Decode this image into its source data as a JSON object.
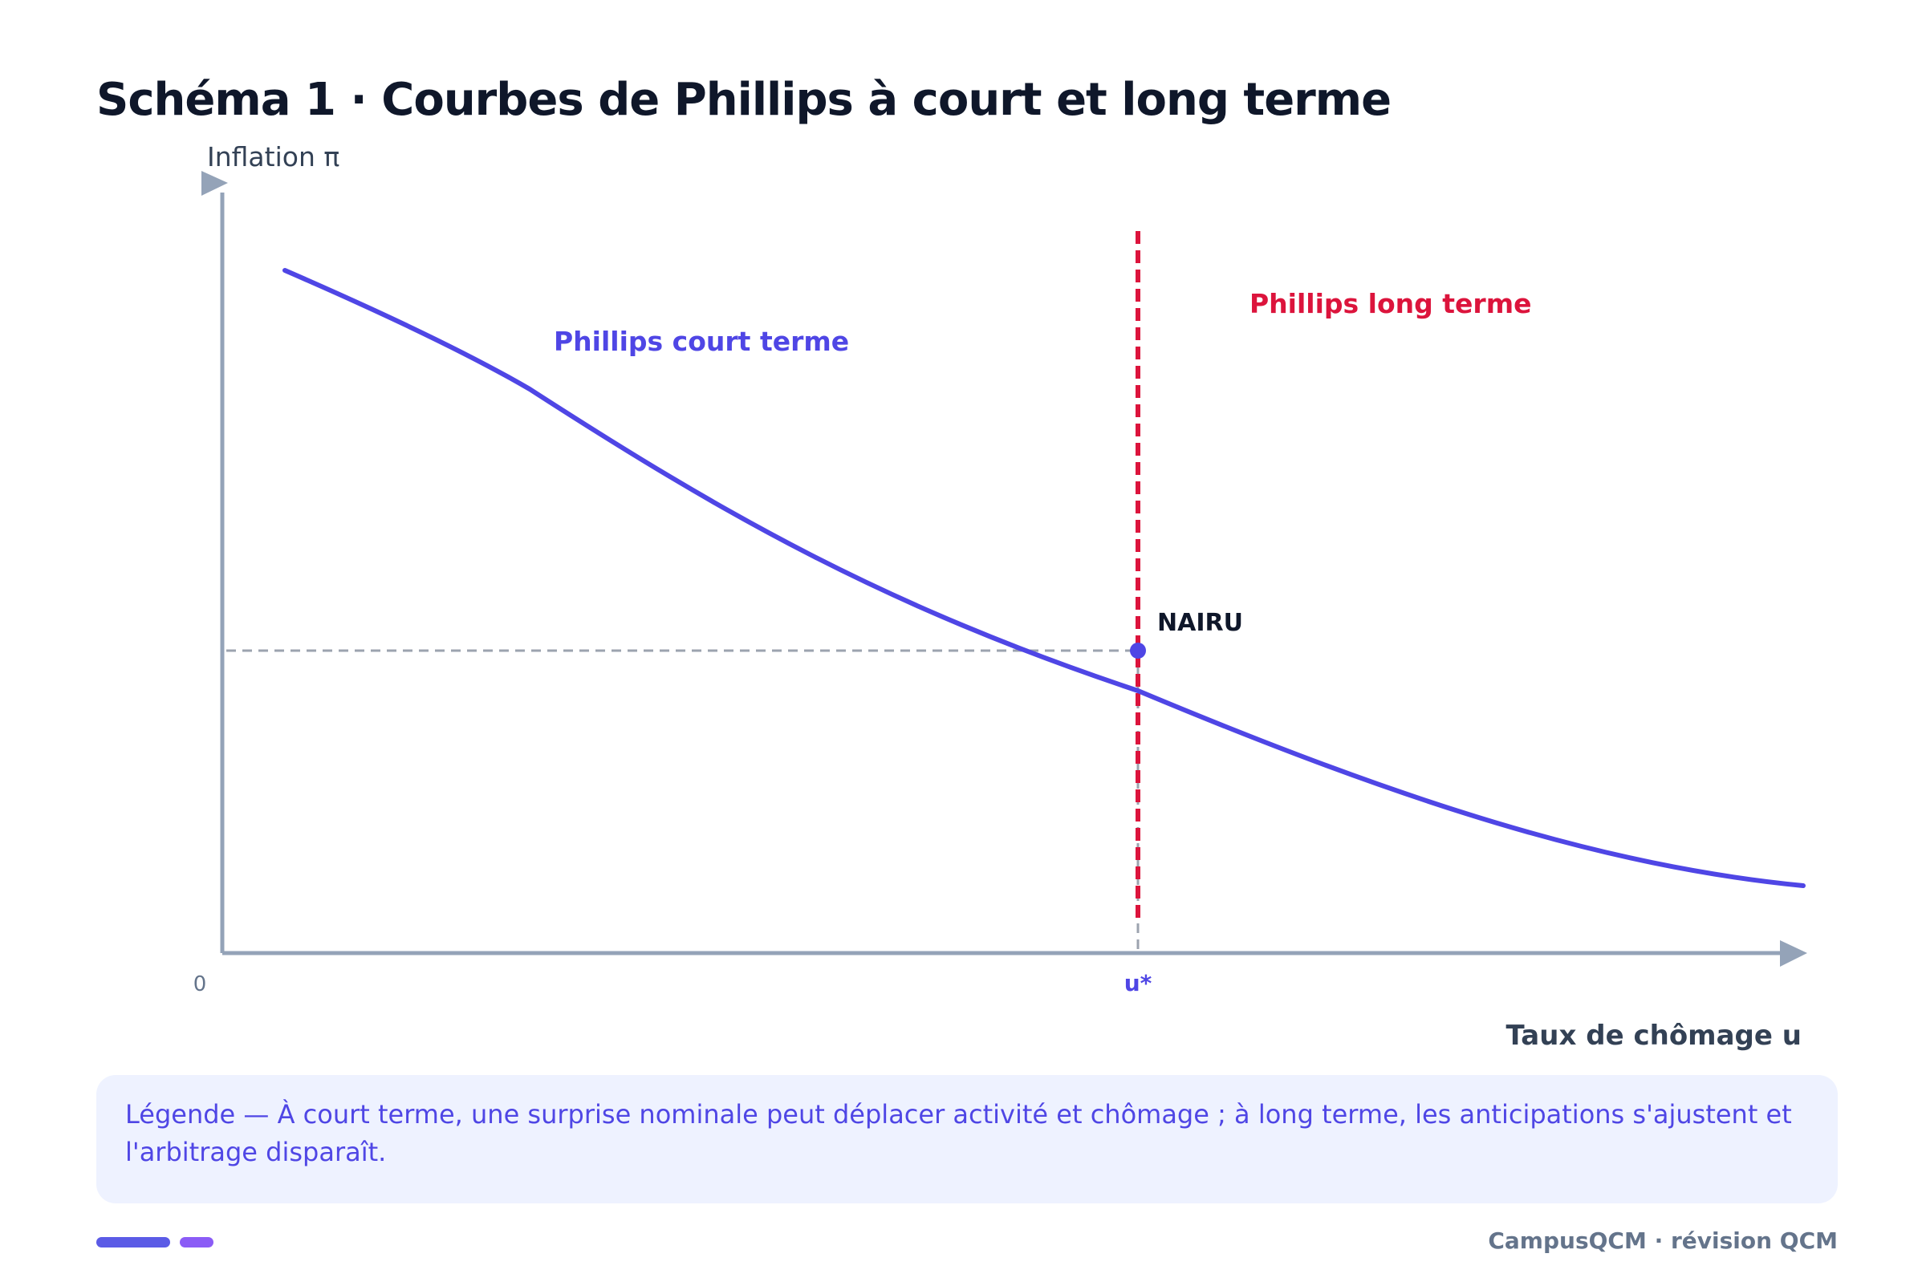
{
  "title": "Schéma 1 · Courbes de Phillips à court et long terme",
  "diagram": {
    "y_axis_label": "Inflation π",
    "x_axis_label": "Taux de chômage u",
    "origin_label": "0",
    "nairu_tick_label": "u*",
    "short_run_label": "Phillips court terme",
    "long_run_label": "Phillips long terme",
    "point_label": "NAIRU",
    "colors": {
      "short_run": "#4f46e5",
      "long_run": "#dc143c",
      "axis": "#94a3b8",
      "guide": "#9ca3af",
      "text_dark": "#0f172a"
    }
  },
  "legend": {
    "text": "Légende — À court terme, une surprise nominale peut déplacer activité et chômage ; à long terme, les anticipations s'ajustent et l'arbitrage disparaît."
  },
  "footer": {
    "brand": "CampusQCM · révision QCM"
  }
}
